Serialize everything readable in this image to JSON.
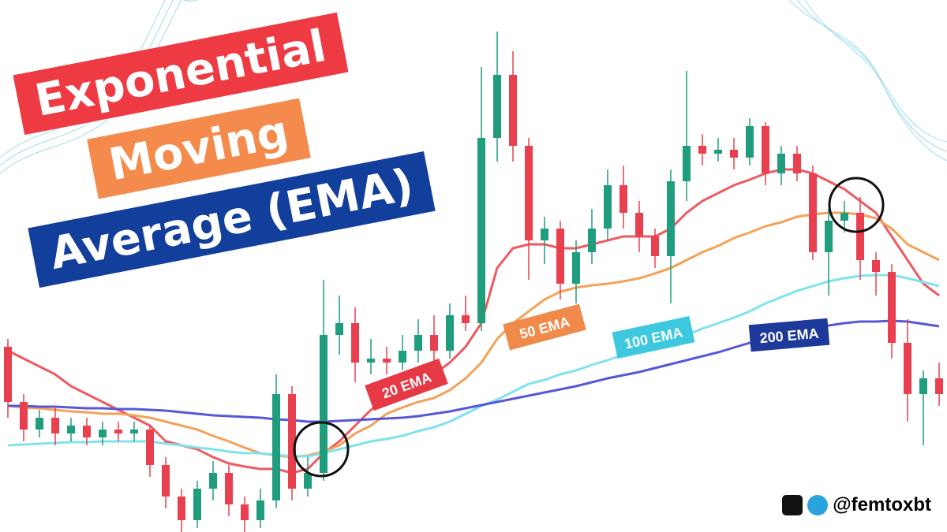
{
  "chart_data": {
    "type": "candlestick",
    "title": [
      "Exponential",
      "Moving",
      "Average (EMA)"
    ],
    "handle": "@femtoxbt",
    "ylim": [
      0,
      675
    ],
    "up_color": "#1f9d7d",
    "down_color": "#e9404f",
    "candles": {
      "open": [
        235,
        165,
        130,
        145,
        125,
        135,
        120,
        130,
        125,
        130,
        85,
        45,
        15,
        55,
        75,
        35,
        15,
        40,
        175,
        55,
        75,
        250,
        265,
        215,
        220,
        215,
        230,
        250,
        230,
        275,
        265,
        500,
        580,
        490,
        370,
        385,
        315,
        355,
        385,
        440,
        405,
        375,
        350,
        445,
        490,
        480,
        485,
        475,
        515,
        455,
        480,
        455,
        355,
        395,
        405,
        345,
        330,
        240,
        175,
        195
      ],
      "high": [
        245,
        175,
        155,
        160,
        145,
        145,
        140,
        140,
        140,
        135,
        95,
        55,
        65,
        90,
        85,
        45,
        55,
        200,
        185,
        95,
        320,
        300,
        285,
        245,
        235,
        250,
        270,
        275,
        290,
        300,
        590,
        635,
        610,
        500,
        400,
        395,
        370,
        410,
        460,
        465,
        420,
        385,
        460,
        585,
        505,
        500,
        500,
        525,
        520,
        490,
        490,
        465,
        410,
        420,
        425,
        355,
        340,
        270,
        205,
        215
      ],
      "low": [
        145,
        115,
        120,
        110,
        115,
        110,
        110,
        115,
        115,
        70,
        30,
        0,
        5,
        40,
        20,
        0,
        5,
        30,
        40,
        45,
        65,
        225,
        190,
        200,
        200,
        205,
        215,
        215,
        220,
        255,
        255,
        470,
        470,
        320,
        340,
        295,
        290,
        340,
        370,
        385,
        355,
        335,
        290,
        420,
        465,
        470,
        460,
        465,
        440,
        440,
        445,
        345,
        300,
        380,
        320,
        300,
        220,
        140,
        110,
        160
      ],
      "close": [
        165,
        130,
        145,
        125,
        135,
        120,
        130,
        125,
        130,
        85,
        45,
        15,
        55,
        75,
        35,
        15,
        40,
        175,
        55,
        75,
        250,
        265,
        215,
        220,
        215,
        230,
        250,
        230,
        275,
        265,
        500,
        580,
        490,
        370,
        385,
        315,
        355,
        385,
        440,
        405,
        375,
        350,
        445,
        490,
        480,
        485,
        475,
        515,
        455,
        480,
        455,
        355,
        395,
        405,
        345,
        330,
        240,
        175,
        195,
        175
      ]
    },
    "series": [
      {
        "name": "20 EMA",
        "color": "#ee5a5f",
        "values": [
          230,
          220,
          210,
          200,
          185,
          175,
          165,
          155,
          145,
          135,
          115,
          110,
          105,
          95,
          87,
          83,
          80,
          80,
          75,
          80,
          100,
          115,
          135,
          155,
          170,
          180,
          190,
          200,
          215,
          235,
          265,
          335,
          360,
          365,
          365,
          360,
          360,
          365,
          370,
          375,
          375,
          375,
          385,
          405,
          420,
          430,
          440,
          447,
          455,
          460,
          460,
          455,
          445,
          435,
          420,
          405,
          375,
          345,
          315,
          300
        ]
      },
      {
        "name": "50 EMA",
        "color": "#f4a259",
        "values": [
          160,
          158,
          157,
          155,
          153,
          152,
          150,
          150,
          148,
          145,
          140,
          135,
          130,
          122,
          115,
          107,
          100,
          97,
          95,
          97,
          102,
          110,
          125,
          135,
          150,
          158,
          165,
          170,
          180,
          195,
          215,
          245,
          265,
          280,
          295,
          305,
          310,
          313,
          315,
          318,
          322,
          328,
          335,
          345,
          355,
          363,
          373,
          380,
          388,
          393,
          400,
          403,
          405,
          405,
          403,
          398,
          385,
          365,
          355,
          345
        ]
      },
      {
        "name": "100 EMA",
        "color": "#7fe3ee",
        "values": [
          110,
          111,
          112,
          113,
          114,
          114,
          115,
          115,
          115,
          115,
          112,
          110,
          107,
          105,
          102,
          100,
          100,
          98,
          96,
          96,
          100,
          105,
          110,
          115,
          118,
          122,
          128,
          133,
          140,
          150,
          160,
          168,
          178,
          188,
          193,
          200,
          205,
          212,
          218,
          225,
          232,
          238,
          242,
          250,
          258,
          265,
          272,
          280,
          290,
          298,
          306,
          312,
          318,
          322,
          325,
          326,
          326,
          322,
          317,
          312
        ]
      },
      {
        "name": "200 EMA",
        "color": "#5658d6",
        "values": [
          160,
          160,
          159,
          159,
          158,
          157,
          157,
          156,
          156,
          155,
          154,
          152,
          150,
          148,
          147,
          146,
          145,
          143,
          142,
          140,
          140,
          141,
          142,
          143,
          144,
          145,
          147,
          150,
          153,
          157,
          161,
          165,
          169,
          173,
          177,
          181,
          185,
          190,
          195,
          199,
          203,
          208,
          213,
          218,
          223,
          228,
          234,
          240,
          246,
          252,
          256,
          259,
          262,
          265,
          267,
          267,
          268,
          267,
          264,
          261
        ]
      }
    ],
    "label_colors": [
      "#e63946",
      "#f08a4b",
      "#3ec8e0",
      "#1d3a9a"
    ]
  }
}
